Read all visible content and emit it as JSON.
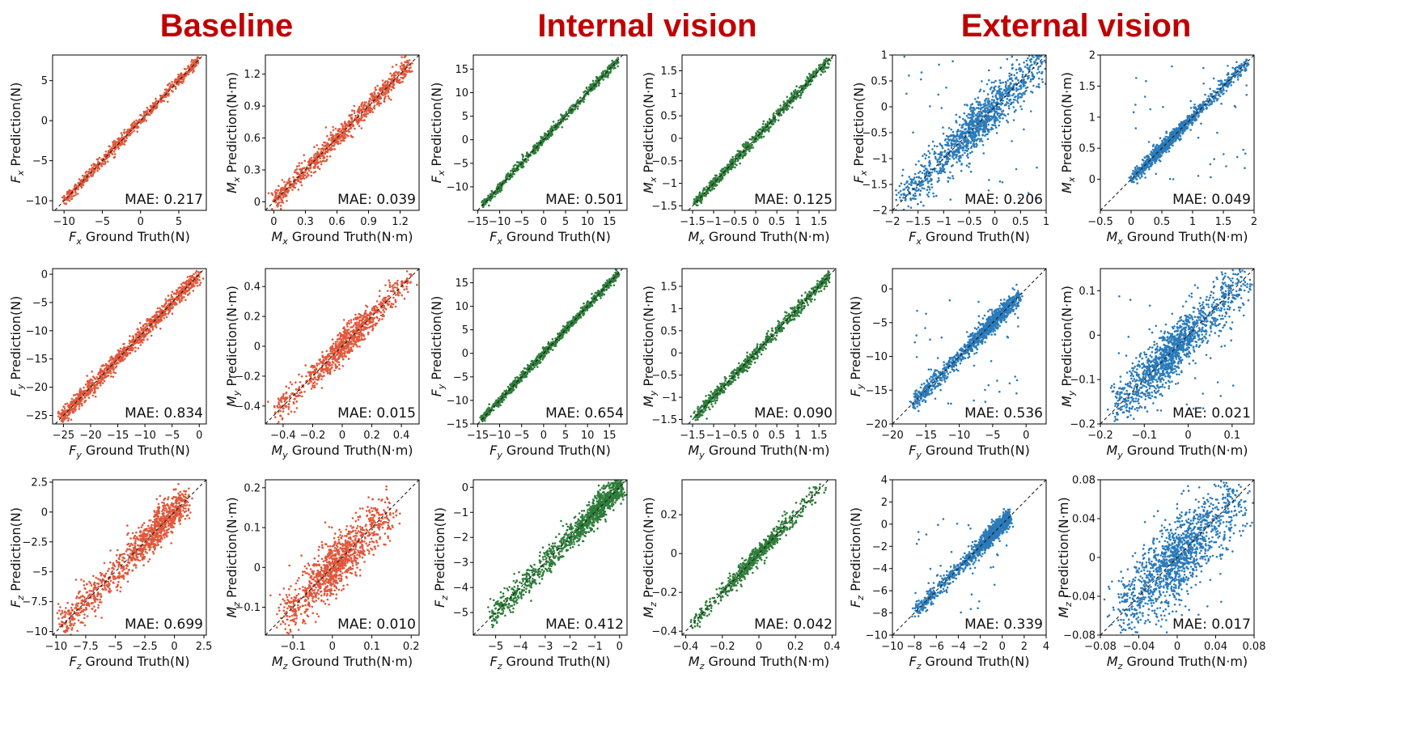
{
  "titles": {
    "baseline": "Baseline",
    "internal": "Internal vision",
    "external": "External vision"
  },
  "colors": {
    "baseline": "#e0573a",
    "internal": "#2e7d3a",
    "external": "#2b7bba"
  },
  "chart_data": [
    {
      "type": "scatter",
      "group": "baseline",
      "var": "F",
      "sub": "x",
      "unit": "N",
      "mae": "MAE: 0.217",
      "xlim": [
        -11.5,
        8.6
      ],
      "ylim": [
        -11.2,
        8.2
      ],
      "xticks": [
        -10,
        -5,
        0,
        5
      ],
      "yticks": [
        -10,
        -5,
        0,
        5
      ],
      "range": [
        -10,
        7.7
      ],
      "spread": 0.32,
      "n": 700,
      "outlier": 0
    },
    {
      "type": "scatter",
      "group": "baseline",
      "var": "M",
      "sub": "x",
      "unit": "N·m",
      "mae": "MAE: 0.039",
      "xlim": [
        -0.08,
        1.38
      ],
      "ylim": [
        -0.08,
        1.38
      ],
      "xticks": [
        0,
        0.3,
        0.6,
        0.9,
        1.2
      ],
      "yticks": [
        0,
        0.3,
        0.6,
        0.9,
        1.2
      ],
      "range": [
        0,
        1.3
      ],
      "spread": 0.045,
      "n": 900,
      "outlier": 0
    },
    {
      "type": "scatter",
      "group": "internal",
      "var": "F",
      "sub": "x",
      "unit": "N",
      "mae": "MAE: 0.501",
      "xlim": [
        -16,
        19
      ],
      "ylim": [
        -15,
        18
      ],
      "xticks": [
        -15,
        -10,
        -5,
        0,
        5,
        10,
        15
      ],
      "yticks": [
        -10,
        -5,
        0,
        5,
        10,
        15
      ],
      "range": [
        -14,
        17
      ],
      "spread": 0.45,
      "n": 700,
      "outlier": 0
    },
    {
      "type": "scatter",
      "group": "internal",
      "var": "M",
      "sub": "x",
      "unit": "N·m",
      "mae": "MAE: 0.125",
      "xlim": [
        -1.75,
        1.9
      ],
      "ylim": [
        -1.6,
        1.85
      ],
      "xticks": [
        -1.5,
        -1.0,
        -0.5,
        0,
        0.5,
        1.0,
        1.5
      ],
      "yticks": [
        -1.5,
        -1.0,
        -0.5,
        0,
        0.5,
        1.0,
        1.5
      ],
      "range": [
        -1.45,
        1.75
      ],
      "spread": 0.06,
      "n": 700,
      "outlier": 0
    },
    {
      "type": "scatter",
      "group": "external",
      "var": "F",
      "sub": "x",
      "unit": "N",
      "mae": "MAE: 0.206",
      "xlim": [
        -2.0,
        1.0
      ],
      "ylim": [
        -2.0,
        1.0
      ],
      "xticks": [
        -2.0,
        -1.5,
        -1.0,
        -0.5,
        0,
        0.5,
        1.0
      ],
      "yticks": [
        -2.0,
        -1.5,
        -1.0,
        -0.5,
        0,
        0.5,
        1.0
      ],
      "range": [
        -1.8,
        1.0
      ],
      "spread": 0.2,
      "n": 1300,
      "outlier": 0.04,
      "center": -0.35,
      "conc": 0.35
    },
    {
      "type": "scatter",
      "group": "external",
      "var": "M",
      "sub": "x",
      "unit": "N·m",
      "mae": "MAE: 0.049",
      "xlim": [
        -0.5,
        2.0
      ],
      "ylim": [
        -0.5,
        2.0
      ],
      "xticks": [
        -0.5,
        0,
        0.5,
        1.0,
        1.5,
        2.0
      ],
      "yticks": [
        0,
        0.5,
        1.0,
        1.5,
        2.0
      ],
      "range": [
        0,
        1.9
      ],
      "spread": 0.05,
      "n": 1100,
      "outlier": 0.04,
      "center": 0.6,
      "conc": 0.45
    },
    {
      "type": "scatter",
      "group": "baseline",
      "var": "F",
      "sub": "y",
      "unit": "N",
      "mae": "MAE: 0.834",
      "xlim": [
        -27,
        1.3
      ],
      "ylim": [
        -26.5,
        1
      ],
      "xticks": [
        -25,
        -20,
        -15,
        -10,
        -5,
        0
      ],
      "yticks": [
        -25,
        -20,
        -15,
        -10,
        -5,
        0
      ],
      "range": [
        -25.5,
        0
      ],
      "spread": 0.7,
      "n": 1100,
      "outlier": 0
    },
    {
      "type": "scatter",
      "group": "baseline",
      "var": "M",
      "sub": "y",
      "unit": "N·m",
      "mae": "MAE: 0.015",
      "xlim": [
        -0.52,
        0.52
      ],
      "ylim": [
        -0.52,
        0.52
      ],
      "xticks": [
        -0.4,
        -0.2,
        0,
        0.2,
        0.4
      ],
      "yticks": [
        -0.4,
        -0.2,
        0,
        0.2,
        0.4
      ],
      "range": [
        -0.45,
        0.47
      ],
      "spread": 0.045,
      "n": 900,
      "outlier": 0,
      "center": 0.02,
      "conc": 0.5
    },
    {
      "type": "scatter",
      "group": "internal",
      "var": "F",
      "sub": "y",
      "unit": "N",
      "mae": "MAE: 0.654",
      "xlim": [
        -16,
        19
      ],
      "ylim": [
        -15,
        18
      ],
      "xticks": [
        -15,
        -10,
        -5,
        0,
        5,
        10,
        15
      ],
      "yticks": [
        -15,
        -10,
        -5,
        0,
        5,
        10,
        15
      ],
      "range": [
        -14,
        17
      ],
      "spread": 0.45,
      "n": 900,
      "outlier": 0
    },
    {
      "type": "scatter",
      "group": "internal",
      "var": "M",
      "sub": "y",
      "unit": "N·m",
      "mae": "MAE: 0.090",
      "xlim": [
        -1.75,
        1.9
      ],
      "ylim": [
        -1.6,
        1.9
      ],
      "xticks": [
        -1.5,
        -1.0,
        -0.5,
        0,
        0.5,
        1.0,
        1.5
      ],
      "yticks": [
        -1.5,
        -1.0,
        -0.5,
        0,
        0.5,
        1.0,
        1.5
      ],
      "range": [
        -1.45,
        1.75
      ],
      "spread": 0.07,
      "n": 800,
      "outlier": 0
    },
    {
      "type": "scatter",
      "group": "external",
      "var": "F",
      "sub": "y",
      "unit": "N",
      "mae": "MAE: 0.536",
      "xlim": [
        -20,
        3
      ],
      "ylim": [
        -20,
        3
      ],
      "xticks": [
        -20,
        -15,
        -10,
        -5,
        0
      ],
      "yticks": [
        -20,
        -15,
        -10,
        -5,
        0
      ],
      "range": [
        -17,
        -1
      ],
      "spread": 0.6,
      "n": 1200,
      "outlier": 0.04,
      "center": -5,
      "conc": 0.45
    },
    {
      "type": "scatter",
      "group": "external",
      "var": "M",
      "sub": "y",
      "unit": "N·m",
      "mae": "MAE: 0.021",
      "xlim": [
        -0.2,
        0.15
      ],
      "ylim": [
        -0.2,
        0.15
      ],
      "xticks": [
        -0.2,
        -0.1,
        0,
        0.1
      ],
      "yticks": [
        -0.2,
        -0.1,
        0,
        0.1
      ],
      "range": [
        -0.17,
        0.13
      ],
      "spread": 0.025,
      "n": 1400,
      "outlier": 0.03,
      "center": -0.04,
      "conc": 0.45
    },
    {
      "type": "scatter",
      "group": "baseline",
      "var": "F",
      "sub": "z",
      "unit": "N",
      "mae": "MAE: 0.699",
      "xlim": [
        -10.3,
        2.7
      ],
      "ylim": [
        -10.3,
        2.7
      ],
      "xticks": [
        -10.0,
        -7.5,
        -5.0,
        -2.5,
        0.0,
        2.5
      ],
      "yticks": [
        -10.0,
        -7.5,
        -5.0,
        -2.5,
        0.0,
        2.5
      ],
      "range": [
        -9.6,
        0.8
      ],
      "spread": 0.7,
      "n": 1100,
      "outlier": 0,
      "center": -1,
      "conc": 0.4
    },
    {
      "type": "scatter",
      "group": "baseline",
      "var": "M",
      "sub": "z",
      "unit": "N·m",
      "mae": "MAE: 0.010",
      "xlim": [
        -0.17,
        0.22
      ],
      "ylim": [
        -0.17,
        0.22
      ],
      "xticks": [
        -0.1,
        0,
        0.1,
        0.2
      ],
      "yticks": [
        -0.1,
        0,
        0.1,
        0.2
      ],
      "range": [
        -0.12,
        0.14
      ],
      "spread": 0.03,
      "n": 1100,
      "outlier": 0,
      "center": 0.005,
      "conc": 0.3
    },
    {
      "type": "scatter",
      "group": "internal",
      "var": "F",
      "sub": "z",
      "unit": "N",
      "mae": "MAE: 0.412",
      "xlim": [
        -5.9,
        0.3
      ],
      "ylim": [
        -5.9,
        0.3
      ],
      "xticks": [
        -5,
        -4,
        -3,
        -2,
        -1,
        0
      ],
      "yticks": [
        -5,
        -4,
        -3,
        -2,
        -1,
        0
      ],
      "range": [
        -5.2,
        0
      ],
      "spread": 0.25,
      "n": 1200,
      "outlier": 0,
      "center": -0.8,
      "conc": 0.45
    },
    {
      "type": "scatter",
      "group": "internal",
      "var": "M",
      "sub": "z",
      "unit": "N·m",
      "mae": "MAE: 0.042",
      "xlim": [
        -0.42,
        0.42
      ],
      "ylim": [
        -0.42,
        0.38
      ],
      "xticks": [
        -0.4,
        -0.2,
        0,
        0.2,
        0.4
      ],
      "yticks": [
        -0.4,
        -0.2,
        0,
        0.2
      ],
      "range": [
        -0.37,
        0.35
      ],
      "spread": 0.022,
      "n": 700,
      "outlier": 0,
      "center": 0.0,
      "conc": 0.6
    },
    {
      "type": "scatter",
      "group": "external",
      "var": "F",
      "sub": "z",
      "unit": "N",
      "mae": "MAE: 0.339",
      "xlim": [
        -10,
        4
      ],
      "ylim": [
        -10,
        4
      ],
      "xticks": [
        -10,
        -8,
        -6,
        -4,
        -2,
        0,
        2,
        4
      ],
      "yticks": [
        -10,
        -8,
        -6,
        -4,
        -2,
        0,
        2,
        4
      ],
      "range": [
        -8,
        0.5
      ],
      "spread": 0.35,
      "n": 1200,
      "outlier": 0.03,
      "center": -0.7,
      "conc": 0.55
    },
    {
      "type": "scatter",
      "group": "external",
      "var": "M",
      "sub": "z",
      "unit": "N·m",
      "mae": "MAE: 0.017",
      "xlim": [
        -0.08,
        0.08
      ],
      "ylim": [
        -0.08,
        0.08
      ],
      "xticks": [
        -0.08,
        -0.04,
        0,
        0.04,
        0.08
      ],
      "yticks": [
        -0.08,
        -0.04,
        0,
        0.04,
        0.08
      ],
      "range": [
        -0.06,
        0.07
      ],
      "spread": 0.018,
      "n": 1400,
      "outlier": 0.02,
      "center": 0.0,
      "conc": 0.45
    }
  ]
}
